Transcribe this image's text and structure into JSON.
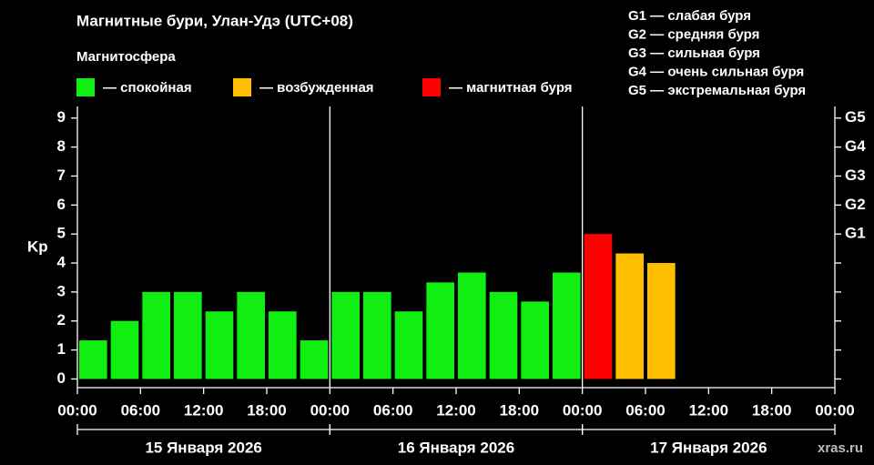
{
  "chart_data": {
    "type": "bar",
    "title": "Магнитные бури, Улан-Удэ (UTC+08)",
    "subtitle": "Магнитосфера",
    "y_label": "Kp",
    "legend": [
      {
        "name": "— спокойная",
        "color": "#11ee11"
      },
      {
        "name": "— возбужденная",
        "color": "#ffbf00"
      },
      {
        "name": "— магнитная буря",
        "color": "#ff0000"
      }
    ],
    "storm_levels": [
      "G1 — слабая буря",
      "G2 — средняя буря",
      "G3 — сильная буря",
      "G4 — очень сильная буря",
      "G5 — экстремальная буря"
    ],
    "x": [
      0,
      3,
      6,
      9,
      12,
      15,
      18,
      21,
      24,
      27,
      30,
      33,
      36,
      39,
      42,
      45,
      48,
      51,
      54
    ],
    "values": [
      1.33,
      2,
      3,
      3,
      2.33,
      3,
      2.33,
      1.33,
      3,
      3,
      2.33,
      3.33,
      3.67,
      3,
      2.67,
      3.67,
      5,
      4.33,
      4
    ],
    "colors": [
      "#11ee11",
      "#11ee11",
      "#11ee11",
      "#11ee11",
      "#11ee11",
      "#11ee11",
      "#11ee11",
      "#11ee11",
      "#11ee11",
      "#11ee11",
      "#11ee11",
      "#11ee11",
      "#11ee11",
      "#11ee11",
      "#11ee11",
      "#11ee11",
      "#ff0000",
      "#ffbf00",
      "#ffbf00"
    ],
    "xlim": [
      0,
      72
    ],
    "xticks": [
      {
        "value": 0,
        "label": "00:00"
      },
      {
        "value": 6,
        "label": "06:00"
      },
      {
        "value": 12,
        "label": "12:00"
      },
      {
        "value": 18,
        "label": "18:00"
      },
      {
        "value": 24,
        "label": "00:00"
      },
      {
        "value": 30,
        "label": "06:00"
      },
      {
        "value": 36,
        "label": "12:00"
      },
      {
        "value": 42,
        "label": "18:00"
      },
      {
        "value": 48,
        "label": "00:00"
      },
      {
        "value": 54,
        "label": "06:00"
      },
      {
        "value": 60,
        "label": "12:00"
      },
      {
        "value": 66,
        "label": "18:00"
      },
      {
        "value": 72,
        "label": "00:00"
      }
    ],
    "days": [
      "15 Января 2026",
      "16 Января 2026",
      "17 Января 2026"
    ],
    "ylim": [
      -0.3,
      9.4
    ],
    "yticks": [
      0,
      1,
      2,
      3,
      4,
      5,
      6,
      7,
      8,
      9
    ],
    "y2ticks": [
      {
        "value": 5,
        "label": "G1"
      },
      {
        "value": 6,
        "label": "G2"
      },
      {
        "value": 7,
        "label": "G3"
      },
      {
        "value": 8,
        "label": "G4"
      },
      {
        "value": 9,
        "label": "G5"
      }
    ],
    "watermark": "xras.ru"
  }
}
